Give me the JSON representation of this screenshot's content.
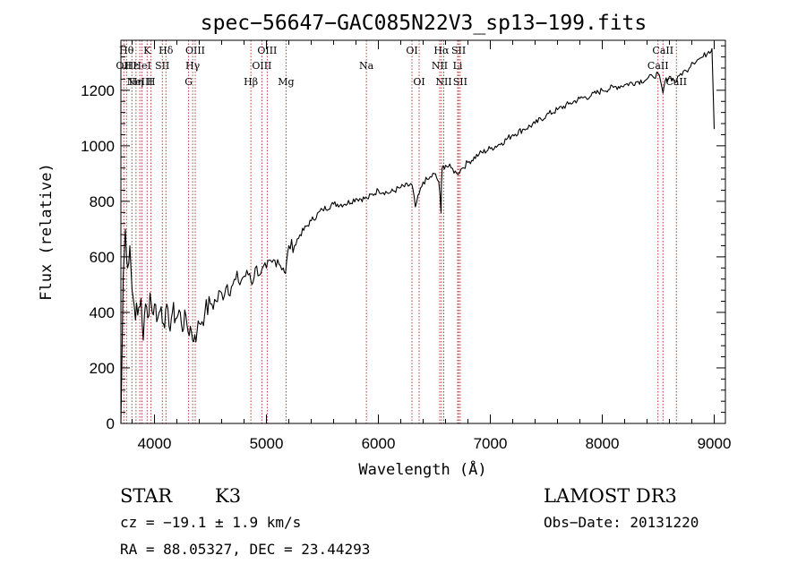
{
  "chart_data": {
    "type": "line",
    "title": "spec−56647−GAC085N22V3_sp13−199.fits",
    "xlabel": "Wavelength (Å)",
    "ylabel": "Flux (relative)",
    "xlim": [
      3700,
      9100
    ],
    "ylim": [
      0,
      1380
    ],
    "xticks": [
      4000,
      5000,
      6000,
      7000,
      8000,
      9000
    ],
    "yticks": [
      0,
      200,
      400,
      600,
      800,
      1000,
      1200
    ],
    "grid": false,
    "series": [
      {
        "x": [
          3700,
          3720,
          3740,
          3760,
          3780,
          3800,
          3820,
          3850,
          3880,
          3900,
          3920,
          3940,
          3960,
          3980,
          4000,
          4030,
          4060,
          4080,
          4100,
          4130,
          4160,
          4200,
          4230,
          4260,
          4280,
          4300,
          4320,
          4340,
          4360,
          4380,
          4400,
          4450,
          4500,
          4550,
          4600,
          4650,
          4700,
          4750,
          4800,
          4850,
          4870,
          4900,
          4950,
          5000,
          5050,
          5100,
          5150,
          5170,
          5200,
          5250,
          5300,
          5400,
          5500,
          5600,
          5700,
          5800,
          5900,
          6000,
          6100,
          6200,
          6300,
          6330,
          6400,
          6450,
          6500,
          6540,
          6560,
          6563,
          6570,
          6600,
          6650,
          6700,
          6750,
          6800,
          6900,
          7000,
          7100,
          7200,
          7300,
          7400,
          7500,
          7600,
          7700,
          7800,
          7900,
          8000,
          8100,
          8200,
          8300,
          8400,
          8450,
          8500,
          8542,
          8560,
          8600,
          8662,
          8700,
          8750,
          8800,
          8850,
          8900,
          8950,
          8980,
          8990,
          9000
        ],
        "y": [
          0,
          520,
          700,
          560,
          640,
          480,
          420,
          390,
          450,
          300,
          430,
          380,
          470,
          400,
          430,
          380,
          420,
          360,
          410,
          350,
          400,
          380,
          400,
          340,
          390,
          330,
          350,
          300,
          320,
          330,
          360,
          400,
          430,
          440,
          470,
          500,
          500,
          510,
          530,
          540,
          500,
          560,
          540,
          560,
          580,
          590,
          560,
          540,
          640,
          640,
          680,
          730,
          770,
          790,
          790,
          810,
          810,
          840,
          830,
          850,
          860,
          780,
          870,
          880,
          900,
          870,
          760,
          860,
          920,
          930,
          920,
          900,
          920,
          940,
          970,
          990,
          1010,
          1040,
          1060,
          1080,
          1110,
          1130,
          1150,
          1170,
          1180,
          1200,
          1210,
          1220,
          1230,
          1240,
          1250,
          1260,
          1190,
          1230,
          1250,
          1230,
          1260,
          1270,
          1300,
          1310,
          1320,
          1340,
          1350,
          1200,
          1060
        ]
      }
    ],
    "lines": [
      {
        "wl": 3726,
        "labels": [
          {
            "t": "OII",
            "r": 1
          }
        ]
      },
      {
        "wl": 3750,
        "labels": [
          {
            "t": "Hθ",
            "r": 0
          }
        ]
      },
      {
        "wl": 3798,
        "labels": [
          {
            "t": "Hε",
            "r": 1
          }
        ]
      },
      {
        "wl": 3835,
        "labels": [
          {
            "t": "Hη",
            "r": 2
          }
        ]
      },
      {
        "wl": 3869,
        "labels": [
          {
            "t": "NeIII",
            "r": 2
          }
        ]
      },
      {
        "wl": 3889,
        "labels": [
          {
            "t": "HeI",
            "r": 1
          }
        ]
      },
      {
        "wl": 3934,
        "labels": [
          {
            "t": "K",
            "r": 0
          }
        ]
      },
      {
        "wl": 3969,
        "labels": [
          {
            "t": "H",
            "r": 2
          }
        ]
      },
      {
        "wl": 4070,
        "labels": [
          {
            "t": "SII",
            "r": 1
          }
        ]
      },
      {
        "wl": 4102,
        "labels": [
          {
            "t": "Hδ",
            "r": 0
          }
        ]
      },
      {
        "wl": 4305,
        "labels": [
          {
            "t": "G",
            "r": 2
          }
        ]
      },
      {
        "wl": 4341,
        "labels": [
          {
            "t": "Hγ",
            "r": 1
          }
        ]
      },
      {
        "wl": 4364,
        "labels": [
          {
            "t": "OIII",
            "r": 0
          }
        ]
      },
      {
        "wl": 4861,
        "labels": [
          {
            "t": "Hβ",
            "r": 2
          }
        ]
      },
      {
        "wl": 4959,
        "labels": [
          {
            "t": "OIII",
            "r": 1
          }
        ]
      },
      {
        "wl": 5007,
        "labels": [
          {
            "t": "OIII",
            "r": 0
          }
        ]
      },
      {
        "wl": 5175,
        "labels": [
          {
            "t": "Mg",
            "r": 2
          }
        ]
      },
      {
        "wl": 5893,
        "labels": [
          {
            "t": "Na",
            "r": 1
          }
        ]
      },
      {
        "wl": 6300,
        "labels": [
          {
            "t": "OI",
            "r": 0
          }
        ]
      },
      {
        "wl": 6364,
        "labels": [
          {
            "t": "OI",
            "r": 2
          }
        ]
      },
      {
        "wl": 6548,
        "labels": [
          {
            "t": "NII",
            "r": 1
          }
        ]
      },
      {
        "wl": 6563,
        "labels": [
          {
            "t": "Hα",
            "r": 0
          }
        ]
      },
      {
        "wl": 6584,
        "labels": [
          {
            "t": "NII",
            "r": 2
          }
        ]
      },
      {
        "wl": 6708,
        "labels": [
          {
            "t": "Li",
            "r": 1
          }
        ]
      },
      {
        "wl": 6717,
        "labels": [
          {
            "t": "SII",
            "r": 0
          }
        ]
      },
      {
        "wl": 6731,
        "labels": [
          {
            "t": "SII",
            "r": 2
          }
        ]
      },
      {
        "wl": 8498,
        "labels": [
          {
            "t": "CaII",
            "r": 1
          }
        ]
      },
      {
        "wl": 8542,
        "labels": [
          {
            "t": "CaII",
            "r": 0
          }
        ]
      },
      {
        "wl": 8662,
        "labels": [
          {
            "t": "CaII",
            "r": 2
          }
        ]
      }
    ],
    "line_color": "#b22222",
    "spectrum_color": "#000000"
  },
  "info": {
    "class": "STAR",
    "subclass": "K3",
    "cz": "cz = −19.1 ± 1.9 km/s",
    "radec": "RA =  88.05327, DEC =  23.44293",
    "survey": "LAMOST DR3",
    "obsdate": "Obs−Date: 20131220"
  }
}
